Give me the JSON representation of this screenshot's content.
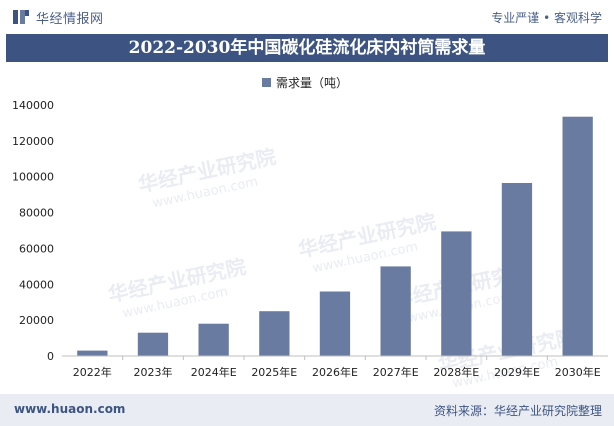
{
  "header": {
    "brand_name": "华经情报网",
    "slogan": "专业严谨 • 客观科学"
  },
  "footer": {
    "website": "www.huaon.com",
    "source": "资料来源：华经产业研究院整理"
  },
  "watermark": {
    "text": "华经产业研究院",
    "sub": "www.huaon.com"
  },
  "colors": {
    "title_band": "#3d5483",
    "bar": "#6a7ba2",
    "brand_text": "#4a5f8a",
    "footer_bg": "#e9edf3"
  },
  "chart_data": {
    "type": "bar",
    "title": "2022-2030年中国碳化硅流化床内衬筒需求量",
    "xlabel": "",
    "ylabel": "",
    "legend": {
      "position": "top-center"
    },
    "grid": false,
    "ylim": [
      0,
      140000
    ],
    "yticks": [
      0,
      20000,
      40000,
      60000,
      80000,
      100000,
      120000,
      140000
    ],
    "ytick_labels": [
      "0",
      "20000",
      "40000",
      "60000",
      "80000",
      "100000",
      "120000",
      "140000"
    ],
    "categories": [
      "2022年",
      "2023年",
      "2024年E",
      "2025年E",
      "2026年E",
      "2027年E",
      "2028年E",
      "2029年E",
      "2030年E"
    ],
    "series": [
      {
        "name": "需求量（吨）",
        "color": "#6a7ba2",
        "values": [
          3000,
          13000,
          18000,
          25000,
          36000,
          50000,
          69500,
          96500,
          133500
        ]
      }
    ]
  }
}
